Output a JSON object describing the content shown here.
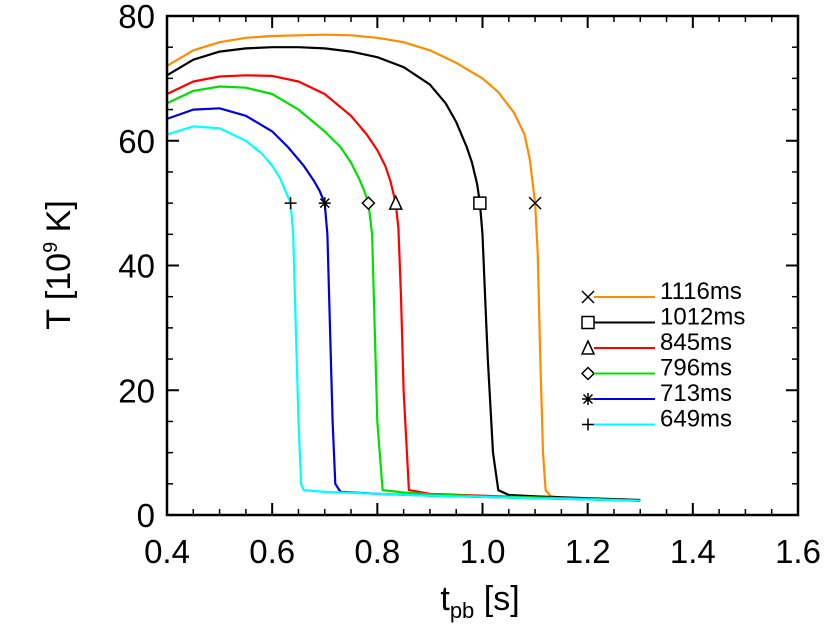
{
  "chart_data": {
    "type": "line",
    "xlabel_main": "t",
    "xlabel_sub": "pb",
    "xlabel_unit": " [s]",
    "ylabel_main": "T [10",
    "ylabel_sup": "9",
    "ylabel_unit": " K]",
    "xlim": [
      0.4,
      1.6
    ],
    "ylim": [
      0,
      80
    ],
    "xticks": [
      0.4,
      0.6,
      0.8,
      1.0,
      1.2,
      1.4,
      1.6
    ],
    "xtick_labels": [
      "0.4",
      "0.6",
      "0.8",
      "1.0",
      "1.2",
      "1.4",
      "1.6"
    ],
    "yticks": [
      0,
      20,
      40,
      60,
      80
    ],
    "ytick_labels": [
      "0",
      "20",
      "40",
      "60",
      "80"
    ],
    "grid": false,
    "legend_position": "right-center",
    "marker_level": 50,
    "series": [
      {
        "name": "1116ms",
        "color": "#ff8c00",
        "marker": "x",
        "marker_x": 1.1,
        "x": [
          0.4,
          0.45,
          0.5,
          0.55,
          0.6,
          0.65,
          0.7,
          0.75,
          0.8,
          0.85,
          0.9,
          0.95,
          1.0,
          1.03,
          1.06,
          1.08,
          1.09,
          1.1,
          1.105,
          1.11,
          1.115,
          1.12,
          1.13,
          1.15,
          1.2,
          1.3
        ],
        "y": [
          72.0,
          74.5,
          75.8,
          76.5,
          76.8,
          76.9,
          77.0,
          76.9,
          76.5,
          75.8,
          74.5,
          72.5,
          70.0,
          67.8,
          64.5,
          61.0,
          57.0,
          50.0,
          42.0,
          25.0,
          10.0,
          4.0,
          3.0,
          2.8,
          2.6,
          2.3
        ]
      },
      {
        "name": "1012ms",
        "color": "#000000",
        "marker": "square",
        "marker_x": 0.995,
        "x": [
          0.4,
          0.45,
          0.5,
          0.55,
          0.6,
          0.65,
          0.7,
          0.75,
          0.8,
          0.85,
          0.9,
          0.93,
          0.95,
          0.97,
          0.98,
          0.99,
          0.995,
          1.0,
          1.005,
          1.01,
          1.02,
          1.03,
          1.05,
          1.1,
          1.2,
          1.3
        ],
        "y": [
          70.5,
          73.0,
          74.3,
          74.8,
          75.0,
          75.0,
          74.8,
          74.3,
          73.4,
          71.8,
          69.0,
          66.0,
          63.0,
          59.0,
          56.5,
          53.0,
          50.0,
          45.0,
          35.0,
          25.0,
          10.0,
          4.0,
          3.2,
          3.0,
          2.7,
          2.4
        ]
      },
      {
        "name": "845ms",
        "color": "#ff0000",
        "marker": "triangle",
        "marker_x": 0.835,
        "x": [
          0.4,
          0.45,
          0.5,
          0.55,
          0.6,
          0.65,
          0.7,
          0.75,
          0.78,
          0.8,
          0.815,
          0.825,
          0.835,
          0.84,
          0.845,
          0.85,
          0.86,
          0.9,
          1.0,
          1.1,
          1.2,
          1.3
        ],
        "y": [
          67.5,
          69.5,
          70.3,
          70.5,
          70.4,
          69.5,
          67.5,
          64.0,
          61.0,
          58.5,
          56.0,
          53.5,
          50.0,
          46.0,
          35.0,
          20.0,
          4.0,
          3.4,
          3.1,
          2.8,
          2.6,
          2.3
        ]
      },
      {
        "name": "796ms",
        "color": "#00e000",
        "marker": "diamond",
        "marker_x": 0.783,
        "x": [
          0.4,
          0.45,
          0.5,
          0.55,
          0.6,
          0.65,
          0.7,
          0.73,
          0.75,
          0.765,
          0.775,
          0.783,
          0.79,
          0.795,
          0.8,
          0.81,
          0.85,
          0.9,
          1.0,
          1.1,
          1.2,
          1.3
        ],
        "y": [
          66.0,
          68.0,
          68.7,
          68.5,
          67.5,
          65.0,
          61.5,
          59.0,
          56.5,
          54.0,
          52.0,
          50.0,
          45.0,
          30.0,
          15.0,
          4.0,
          3.6,
          3.3,
          3.0,
          2.8,
          2.6,
          2.3
        ]
      },
      {
        "name": "713ms",
        "color": "#0000dd",
        "marker": "asterisk",
        "marker_x": 0.7,
        "x": [
          0.4,
          0.45,
          0.5,
          0.55,
          0.6,
          0.63,
          0.66,
          0.68,
          0.69,
          0.7,
          0.705,
          0.71,
          0.715,
          0.72,
          0.73,
          0.8,
          0.9,
          1.0,
          1.1,
          1.2,
          1.3
        ],
        "y": [
          63.5,
          65.0,
          65.2,
          64.0,
          61.5,
          59.0,
          56.0,
          53.5,
          52.0,
          50.0,
          45.0,
          30.0,
          15.0,
          5.0,
          3.7,
          3.4,
          3.1,
          2.9,
          2.7,
          2.5,
          2.3
        ]
      },
      {
        "name": "649ms",
        "color": "#00ffff",
        "marker": "plus",
        "marker_x": 0.635,
        "x": [
          0.4,
          0.45,
          0.5,
          0.55,
          0.58,
          0.6,
          0.615,
          0.625,
          0.635,
          0.64,
          0.645,
          0.65,
          0.655,
          0.66,
          0.7,
          0.8,
          0.9,
          1.0,
          1.1,
          1.2,
          1.3
        ],
        "y": [
          61.0,
          62.3,
          62.0,
          60.0,
          58.0,
          56.0,
          54.0,
          52.0,
          50.0,
          45.0,
          30.0,
          15.0,
          5.0,
          4.0,
          3.7,
          3.4,
          3.1,
          2.9,
          2.7,
          2.5,
          2.3
        ]
      }
    ]
  }
}
